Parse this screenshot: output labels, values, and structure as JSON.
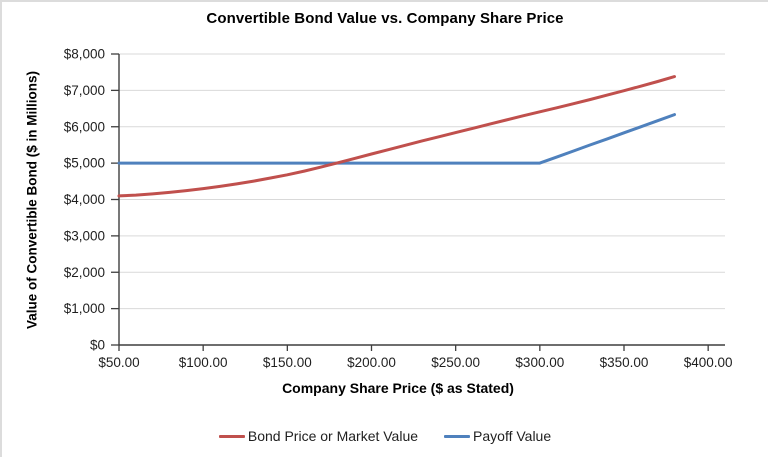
{
  "chart_data": {
    "type": "line",
    "title": "Convertible Bond Value vs. Company Share Price",
    "xlabel": "Company Share Price ($ as Stated)",
    "ylabel": "Value of Convertible Bond ($ in Millions)",
    "xlim": [
      50,
      410
    ],
    "ylim": [
      0,
      8000
    ],
    "grid": "horizontal-only",
    "legend_position": "bottom-center",
    "x_ticks": [
      {
        "value": 50,
        "label": "$50.00"
      },
      {
        "value": 100,
        "label": "$100.00"
      },
      {
        "value": 150,
        "label": "$150.00"
      },
      {
        "value": 200,
        "label": "$200.00"
      },
      {
        "value": 250,
        "label": "$250.00"
      },
      {
        "value": 300,
        "label": "$300.00"
      },
      {
        "value": 350,
        "label": "$350.00"
      },
      {
        "value": 400,
        "label": "$400.00"
      }
    ],
    "y_ticks": [
      {
        "value": 0,
        "label": "$0"
      },
      {
        "value": 1000,
        "label": "$1,000"
      },
      {
        "value": 2000,
        "label": "$2,000"
      },
      {
        "value": 3000,
        "label": "$3,000"
      },
      {
        "value": 4000,
        "label": "$4,000"
      },
      {
        "value": 5000,
        "label": "$5,000"
      },
      {
        "value": 6000,
        "label": "$6,000"
      },
      {
        "value": 7000,
        "label": "$7,000"
      },
      {
        "value": 8000,
        "label": "$8,000"
      }
    ],
    "series": [
      {
        "name": "Bond Price or Market Value",
        "color": "#C0504D",
        "points": [
          [
            50,
            4100
          ],
          [
            60,
            4120
          ],
          [
            70,
            4155
          ],
          [
            80,
            4195
          ],
          [
            90,
            4245
          ],
          [
            100,
            4300
          ],
          [
            110,
            4360
          ],
          [
            120,
            4430
          ],
          [
            130,
            4505
          ],
          [
            140,
            4590
          ],
          [
            150,
            4680
          ],
          [
            160,
            4780
          ],
          [
            170,
            4890
          ],
          [
            180,
            5010
          ],
          [
            190,
            5130
          ],
          [
            200,
            5250
          ],
          [
            210,
            5370
          ],
          [
            220,
            5490
          ],
          [
            230,
            5610
          ],
          [
            240,
            5725
          ],
          [
            250,
            5840
          ],
          [
            260,
            5955
          ],
          [
            270,
            6070
          ],
          [
            280,
            6185
          ],
          [
            290,
            6300
          ],
          [
            300,
            6410
          ],
          [
            310,
            6520
          ],
          [
            320,
            6635
          ],
          [
            330,
            6750
          ],
          [
            340,
            6870
          ],
          [
            350,
            6990
          ],
          [
            360,
            7115
          ],
          [
            370,
            7245
          ],
          [
            380,
            7380
          ]
        ]
      },
      {
        "name": "Payoff Value",
        "color": "#4F81BD",
        "points": [
          [
            50,
            5000
          ],
          [
            300,
            5000
          ],
          [
            310,
            5167
          ],
          [
            320,
            5333
          ],
          [
            330,
            5500
          ],
          [
            340,
            5667
          ],
          [
            350,
            5833
          ],
          [
            360,
            6000
          ],
          [
            370,
            6167
          ],
          [
            380,
            6333
          ]
        ]
      }
    ]
  },
  "style": {
    "gridline_color": "#d9d9d9",
    "axis_color": "#3f3f3f",
    "tick_label_color": "#1f1f1f",
    "background_color": "#ffffff",
    "border_color": "#dcdcdc"
  }
}
